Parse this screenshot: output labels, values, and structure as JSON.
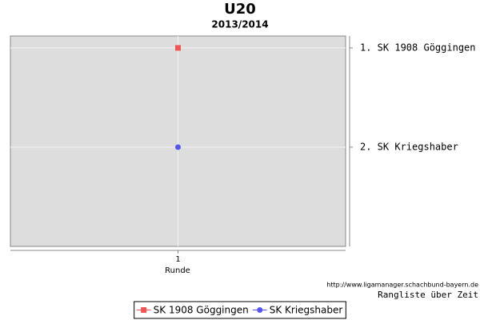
{
  "chart_data": {
    "type": "line",
    "title": "U20",
    "subtitle": "2013/2014",
    "x_label": "Runde",
    "x": [
      1
    ],
    "xlim": [
      0,
      2
    ],
    "xticks": [
      1
    ],
    "ylim": [
      3,
      0.88
    ],
    "yticks": [
      {
        "value": 1,
        "label": "1. SK 1908 Göggingen"
      },
      {
        "value": 2,
        "label": "2. SK Kriegshaber"
      }
    ],
    "grid": true,
    "legend": "bottom",
    "series": [
      {
        "name": "SK 1908 Göggingen",
        "color": "#ee5555",
        "marker": "square",
        "values": [
          1
        ]
      },
      {
        "name": "SK Kriegshaber",
        "color": "#5555ee",
        "marker": "circle",
        "values": [
          2
        ]
      }
    ],
    "source": "http://www.ligamanager.schachbund-bayern.de",
    "caption": "Rangliste über Zeit"
  }
}
